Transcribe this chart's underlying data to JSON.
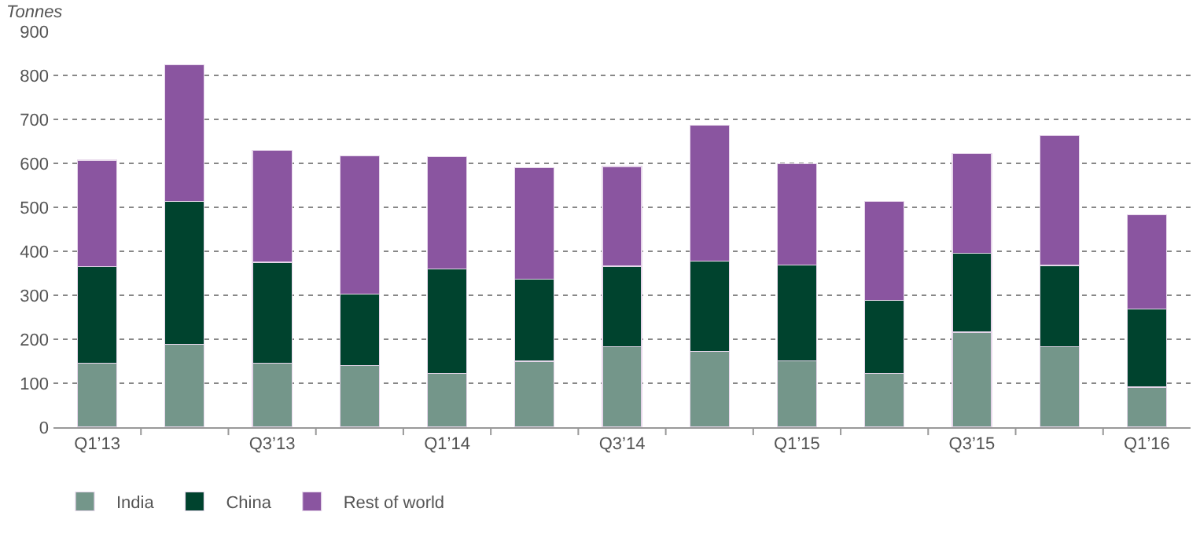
{
  "chart_data": {
    "type": "bar",
    "stacked": true,
    "ylabel": "Tonnes",
    "categories": [
      "Q1’13",
      null,
      "Q3’13",
      null,
      "Q1’14",
      null,
      "Q3’14",
      null,
      "Q1’15",
      null,
      "Q3’15",
      null,
      "Q1’16"
    ],
    "series": [
      {
        "name": "India",
        "color": "#74968a",
        "values": [
          145,
          188,
          145,
          140,
          123,
          150,
          183,
          173,
          151,
          123,
          216,
          183,
          91
        ]
      },
      {
        "name": "China",
        "color": "#00432e",
        "values": [
          220,
          325,
          230,
          162,
          237,
          187,
          183,
          205,
          218,
          165,
          179,
          185,
          178
        ]
      },
      {
        "name": "Rest of world",
        "color": "#8a55a0",
        "values": [
          242,
          311,
          255,
          315,
          255,
          253,
          227,
          308,
          230,
          226,
          227,
          296,
          214
        ]
      }
    ],
    "ylim": [
      0,
      900
    ],
    "yticks": [
      0,
      100,
      200,
      300,
      400,
      500,
      600,
      700,
      800,
      900
    ],
    "grid": "y",
    "legend": "bottom left"
  }
}
